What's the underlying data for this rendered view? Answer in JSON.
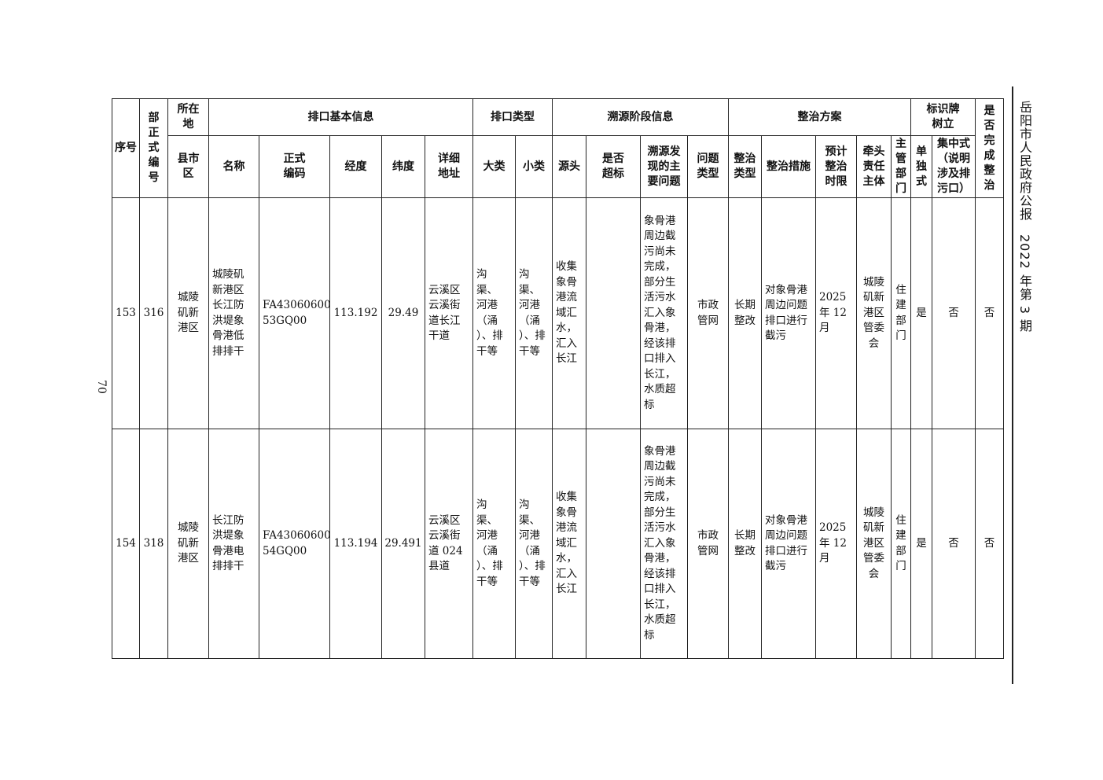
{
  "running_header": "岳阳市人民政府公报　2022 年第 3 期",
  "page_number": "70",
  "header": {
    "seq": "序号",
    "dept_code": "部\n正\n式\n编\n号",
    "location": "所在\n地",
    "basic_info": "排口基本信息",
    "outlet_type": "排口类型",
    "trace_info": "溯源阶段信息",
    "plan": "整治方案",
    "sign": "标识牌\n树立",
    "done": "是\n否\n完\n成\n整\n治",
    "county": "县市\n区",
    "name": "名称",
    "code": "正式\n编码",
    "lng": "经度",
    "lat": "纬度",
    "address": "详细\n地址",
    "major": "大类",
    "minor": "小类",
    "source": "源头",
    "exceed": "是否\n超标",
    "problem": "溯源发\n现的主\n要问题",
    "issue_type": "问题\n类型",
    "fix_type": "整治\n类型",
    "measure": "整治措施",
    "deadline": "预计\n整治\n时限",
    "lead": "牵头\n责任\n主体",
    "authority": "主\n管\n部\n门",
    "single": "单\n独\n式",
    "central": "集中式\n（说明\n涉及排\n污口）"
  },
  "rows": [
    {
      "seq": "153",
      "dept_code": "316",
      "county": "城陵\n矶新\n港区",
      "name": "城陵矶\n新港区\n长江防\n洪堤象\n骨港低\n排排干",
      "code": "FA43060600\n53GQ00",
      "lng": "113.192",
      "lat": "29.49",
      "address": "云溪区\n云溪街\n道长江\n干道",
      "major": "沟\n渠、\n河港\n（涌\n）、排\n干等",
      "minor": "沟\n渠、\n河港\n（涌\n）、排\n干等",
      "source": "收集\n象骨\n港流\n域汇\n水，\n汇入\n长江",
      "exceed": "",
      "problem": "象骨港\n周边截\n污尚未\n完成，\n部分生\n活污水\n汇入象\n骨港，\n经该排\n口排入\n长江，\n水质超\n标",
      "issue_type": "市政\n管网",
      "fix_type": "长期\n整改",
      "measure": "对象骨港\n周边问题\n排口进行\n截污",
      "deadline": "2025\n年 12\n月",
      "lead": "城陵\n矶新\n港区\n管委\n会",
      "authority": "住\n建\n部\n门",
      "single": "是",
      "central": "否",
      "done": "否"
    },
    {
      "seq": "154",
      "dept_code": "318",
      "county": "城陵\n矶新\n港区",
      "name": "长江防\n洪堤象\n骨港电\n排排干",
      "code": "FA43060600\n54GQ00",
      "lng": "113.194",
      "lat": "29.491",
      "address": "云溪区\n云溪街\n道 024\n县道",
      "major": "沟\n渠、\n河港\n（涌\n）、排\n干等",
      "minor": "沟\n渠、\n河港\n（涌\n）、排\n干等",
      "source": "收集\n象骨\n港流\n域汇\n水，\n汇入\n长江",
      "exceed": "",
      "problem": "象骨港\n周边截\n污尚未\n完成，\n部分生\n活污水\n汇入象\n骨港，\n经该排\n口排入\n长江，\n水质超\n标",
      "issue_type": "市政\n管网",
      "fix_type": "长期\n整改",
      "measure": "对象骨港\n周边问题\n排口进行\n截污",
      "deadline": "2025\n年 12\n月",
      "lead": "城陵\n矶新\n港区\n管委\n会",
      "authority": "住\n建\n部\n门",
      "single": "是",
      "central": "否",
      "done": "否"
    }
  ]
}
